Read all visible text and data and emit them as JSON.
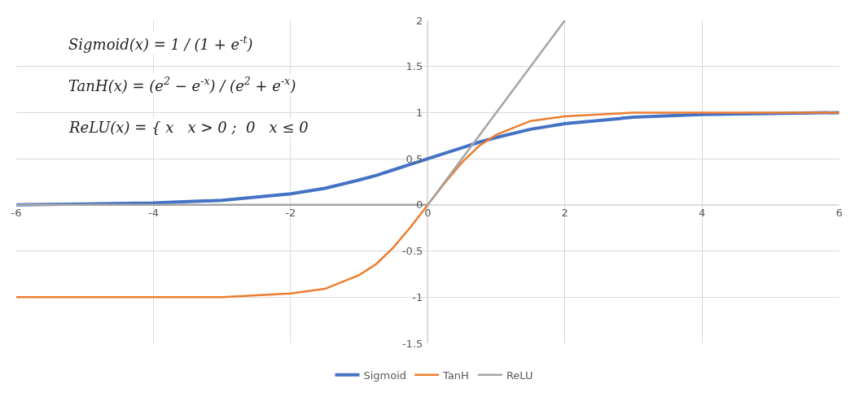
{
  "chart_data": {
    "type": "line",
    "x": [
      -6,
      -5,
      -4,
      -3,
      -2,
      -1.5,
      -1,
      -0.75,
      -0.5,
      -0.25,
      0,
      0.25,
      0.5,
      0.75,
      1,
      1.5,
      2,
      3,
      4,
      5,
      6
    ],
    "series": [
      {
        "name": "Sigmoid",
        "color": "#4472c4",
        "values": [
          0.0,
          0.01,
          0.02,
          0.05,
          0.12,
          0.18,
          0.27,
          0.32,
          0.38,
          0.44,
          0.5,
          0.56,
          0.62,
          0.68,
          0.73,
          0.82,
          0.88,
          0.95,
          0.98,
          0.99,
          1.0
        ]
      },
      {
        "name": "TanH",
        "color": "#ed7d31",
        "values": [
          -1.0,
          -1.0,
          -1.0,
          -1.0,
          -0.96,
          -0.91,
          -0.76,
          -0.64,
          -0.46,
          -0.24,
          0,
          0.24,
          0.46,
          0.64,
          0.76,
          0.91,
          0.96,
          1.0,
          1.0,
          1.0,
          1.0
        ]
      },
      {
        "name": "ReLU",
        "color": "#a5a5a5",
        "x": [
          -6,
          0,
          2
        ],
        "values": [
          0,
          0,
          2
        ]
      }
    ],
    "xlim": [
      -6,
      6
    ],
    "xticks": [
      -6,
      -4,
      -2,
      0,
      2,
      4,
      6
    ],
    "ylim": [
      -1.5,
      2
    ],
    "yticks": [
      -1.5,
      -1,
      -0.5,
      0,
      0.5,
      1,
      1.5,
      2
    ],
    "grid": true,
    "legend": "bottom",
    "marker": "none",
    "line_style": "solid",
    "annotations": [
      "Sigmoid(x) = 1 / (1 + e$^{-t}$)",
      "TanH(x) = (e$^{2}$ − e$^{-x}$) / (e$^{2}$ + e$^{-x}$)",
      "ReLU(x) = { x   x > 0 ;  0   x ≤ 0"
    ]
  }
}
